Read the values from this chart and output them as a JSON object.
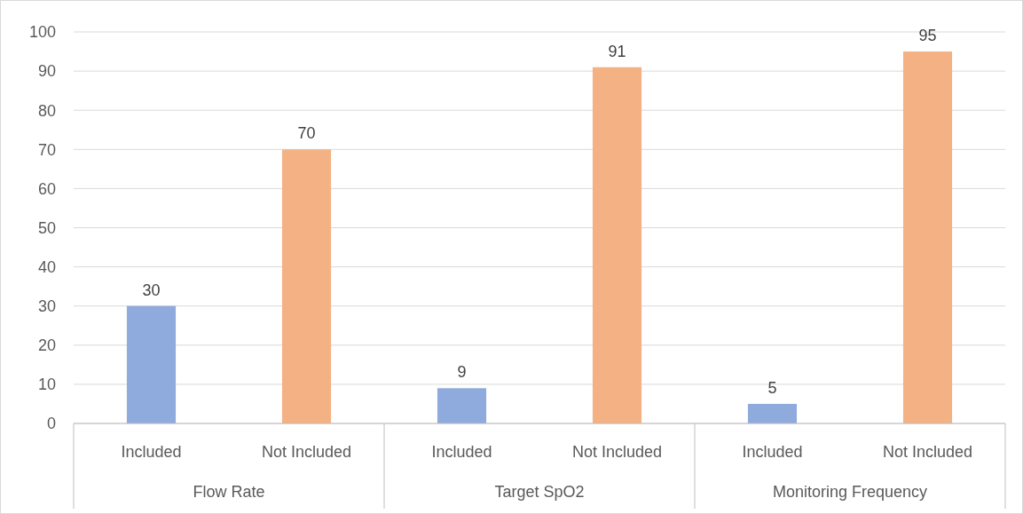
{
  "chart_data": {
    "type": "bar",
    "categories": [
      "Included",
      "Not Included",
      "Included",
      "Not Included",
      "Included",
      "Not Included"
    ],
    "values": [
      30,
      70,
      9,
      91,
      5,
      95
    ],
    "colors": [
      "#8faadc",
      "#f4b183",
      "#8faadc",
      "#f4b183",
      "#8faadc",
      "#f4b183"
    ],
    "ylim": [
      0,
      100
    ],
    "yticks": [
      0,
      10,
      20,
      30,
      40,
      50,
      60,
      70,
      80,
      90,
      100
    ],
    "grid": "y",
    "data_labels": true,
    "annotations": [
      "Flow Rate",
      "Target SpO2",
      "Monitoring Frequency"
    ]
  }
}
